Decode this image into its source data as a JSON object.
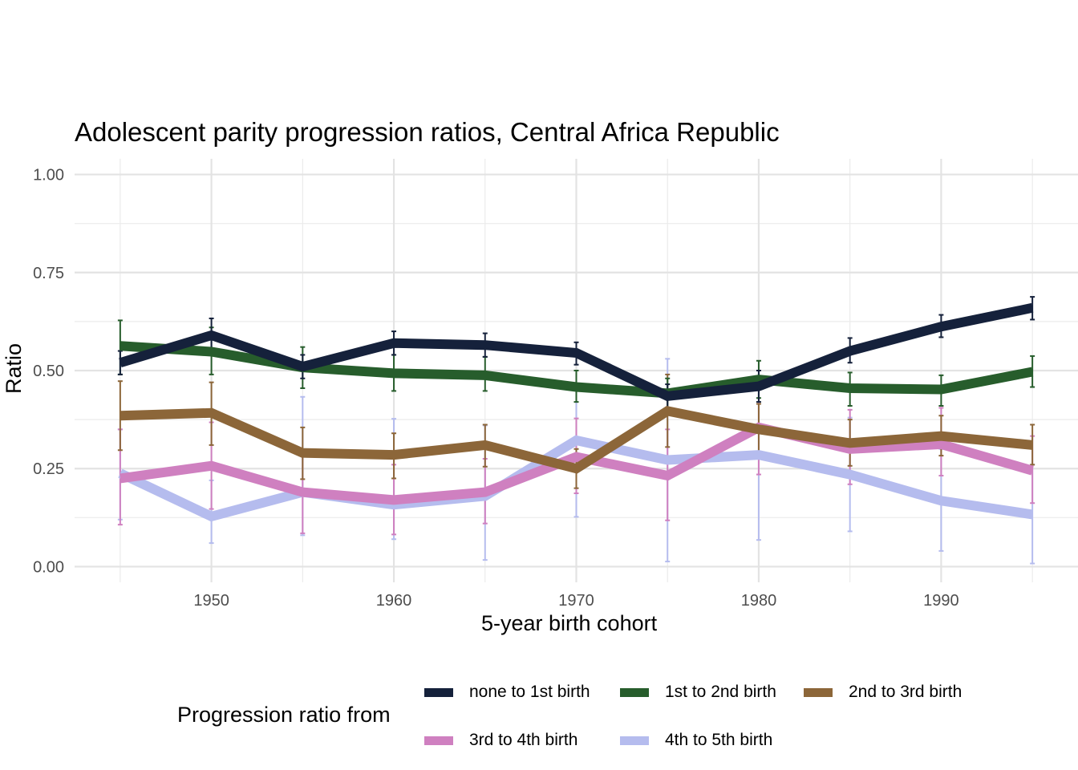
{
  "chart_data": {
    "type": "line",
    "title": "Adolescent parity progression ratios,  Central Africa Republic",
    "xlabel": "5-year birth cohort",
    "ylabel": "Ratio",
    "xlim": [
      1942.5,
      1997.5
    ],
    "ylim": [
      -0.04,
      1.04
    ],
    "x_ticks": [
      1950,
      1960,
      1970,
      1980,
      1990
    ],
    "x_tick_labels": [
      "1950",
      "1960",
      "1970",
      "1980",
      "1990"
    ],
    "y_ticks": [
      0,
      0.25,
      0.5,
      0.75,
      1
    ],
    "y_tick_labels": [
      "0.00",
      "0.25",
      "0.50",
      "0.75",
      "1.00"
    ],
    "grid": true,
    "legend": {
      "title": "Progression ratio from",
      "placement": "bottom"
    },
    "x": [
      1945,
      1950,
      1955,
      1960,
      1965,
      1970,
      1975,
      1980,
      1985,
      1990,
      1995
    ],
    "series": [
      {
        "name": "none to 1st birth",
        "color": "#15213b",
        "values": [
          0.52,
          0.59,
          0.51,
          0.57,
          0.565,
          0.545,
          0.435,
          0.46,
          0.55,
          0.612,
          0.66
        ],
        "lower": [
          0.49,
          0.555,
          0.48,
          0.54,
          0.535,
          0.515,
          0.405,
          0.42,
          0.52,
          0.585,
          0.63
        ],
        "upper": [
          0.55,
          0.633,
          0.54,
          0.6,
          0.595,
          0.572,
          0.465,
          0.5,
          0.583,
          0.642,
          0.688
        ]
      },
      {
        "name": "1st to 2nd birth",
        "color": "#275d2c",
        "values": [
          0.563,
          0.548,
          0.508,
          0.493,
          0.488,
          0.458,
          0.442,
          0.477,
          0.455,
          0.452,
          0.497
        ],
        "lower": [
          0.49,
          0.49,
          0.455,
          0.448,
          0.448,
          0.42,
          0.405,
          0.43,
          0.41,
          0.41,
          0.458
        ],
        "upper": [
          0.628,
          0.61,
          0.56,
          0.54,
          0.535,
          0.5,
          0.48,
          0.525,
          0.495,
          0.488,
          0.537
        ]
      },
      {
        "name": "2nd to 3rd birth",
        "color": "#8c6639",
        "values": [
          0.385,
          0.392,
          0.29,
          0.285,
          0.31,
          0.25,
          0.397,
          0.35,
          0.315,
          0.333,
          0.31
        ],
        "lower": [
          0.297,
          0.31,
          0.223,
          0.225,
          0.255,
          0.2,
          0.305,
          0.285,
          0.257,
          0.283,
          0.26
        ],
        "upper": [
          0.473,
          0.47,
          0.355,
          0.34,
          0.362,
          0.3,
          0.49,
          0.415,
          0.375,
          0.385,
          0.362
        ]
      },
      {
        "name": "3rd to 4th birth",
        "color": "#cf80c0",
        "values": [
          0.225,
          0.257,
          0.19,
          0.17,
          0.19,
          0.28,
          0.232,
          0.355,
          0.3,
          0.312,
          0.245
        ],
        "lower": [
          0.107,
          0.147,
          0.085,
          0.082,
          0.11,
          0.187,
          0.118,
          0.235,
          0.21,
          0.232,
          0.162
        ],
        "upper": [
          0.35,
          0.368,
          0.293,
          0.26,
          0.275,
          0.378,
          0.35,
          0.475,
          0.4,
          0.405,
          0.333
        ]
      },
      {
        "name": "4th to 5th birth",
        "color": "#b5bcee",
        "values": [
          0.238,
          0.128,
          0.19,
          0.158,
          0.18,
          0.322,
          0.272,
          0.285,
          0.235,
          0.168,
          0.133
        ],
        "lower": [
          0.12,
          0.06,
          0.08,
          0.07,
          0.017,
          0.127,
          0.013,
          0.068,
          0.09,
          0.04,
          0.008
        ],
        "upper": [
          0.35,
          0.22,
          0.433,
          0.377,
          0.36,
          0.5,
          0.53,
          0.5,
          0.38,
          0.3,
          0.26
        ]
      }
    ]
  }
}
